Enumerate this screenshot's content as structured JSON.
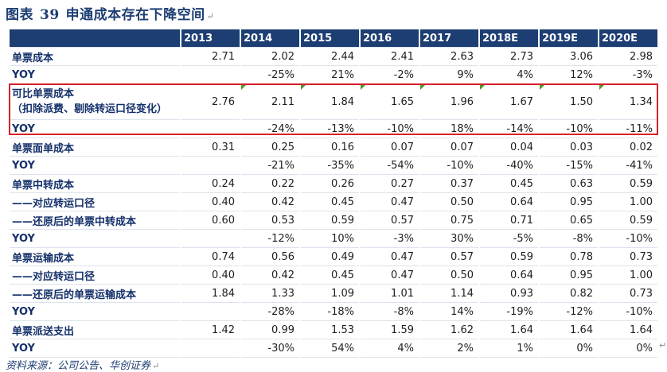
{
  "figure": {
    "label": "图表",
    "number": "39",
    "title": "申通成本存在下降空间",
    "para_mark": "↵"
  },
  "table": {
    "columns": [
      "",
      "2013",
      "2014",
      "2015",
      "2016",
      "2017",
      "2018E",
      "2019E",
      "2020E"
    ],
    "rows": [
      {
        "label": "单票成本",
        "values": [
          "2.71",
          "2.02",
          "2.44",
          "2.41",
          "2.63",
          "2.73",
          "3.06",
          "2.98"
        ]
      },
      {
        "label": "YOY",
        "values": [
          "",
          "-25%",
          "21%",
          "-2%",
          "9%",
          "4%",
          "12%",
          "-3%"
        ]
      },
      {
        "label": "可比单票成本",
        "label_line2": "（扣除派费、剔除转运口径变化）",
        "values": [
          "2.76",
          "2.11",
          "1.84",
          "1.65",
          "1.96",
          "1.67",
          "1.50",
          "1.34"
        ]
      },
      {
        "label": "YOY",
        "values": [
          "",
          "-24%",
          "-13%",
          "-10%",
          "18%",
          "-14%",
          "-10%",
          "-11%"
        ]
      },
      {
        "label": "单票面单成本",
        "values": [
          "0.31",
          "0.25",
          "0.16",
          "0.07",
          "0.07",
          "0.04",
          "0.03",
          "0.02"
        ]
      },
      {
        "label": "YOY",
        "values": [
          "",
          "-21%",
          "-35%",
          "-54%",
          "-10%",
          "-40%",
          "-15%",
          "-41%"
        ]
      },
      {
        "label": "单票中转成本",
        "values": [
          "0.24",
          "0.22",
          "0.26",
          "0.27",
          "0.37",
          "0.45",
          "0.63",
          "0.59"
        ]
      },
      {
        "label": "——对应转运口径",
        "values": [
          "0.40",
          "0.42",
          "0.45",
          "0.47",
          "0.50",
          "0.64",
          "0.95",
          "1.00"
        ]
      },
      {
        "label": "——还原后的单票中转成本",
        "values": [
          "0.60",
          "0.53",
          "0.59",
          "0.57",
          "0.75",
          "0.71",
          "0.65",
          "0.59"
        ]
      },
      {
        "label": "YOY",
        "values": [
          "",
          "-12%",
          "10%",
          "-3%",
          "30%",
          "-5%",
          "-8%",
          "-10%"
        ]
      },
      {
        "label": "单票运输成本",
        "values": [
          "0.74",
          "0.56",
          "0.49",
          "0.47",
          "0.57",
          "0.59",
          "0.78",
          "0.73"
        ]
      },
      {
        "label": "——对应转运口径",
        "values": [
          "0.40",
          "0.42",
          "0.45",
          "0.47",
          "0.50",
          "0.64",
          "0.95",
          "1.00"
        ]
      },
      {
        "label": "——还原后的单票运输成本",
        "values": [
          "1.84",
          "1.33",
          "1.09",
          "1.01",
          "1.14",
          "0.93",
          "0.82",
          "0.73"
        ]
      },
      {
        "label": "YOY",
        "values": [
          "",
          "-28%",
          "-18%",
          "-8%",
          "14%",
          "-19%",
          "-12%",
          "-10%"
        ]
      },
      {
        "label": "单票派送支出",
        "values": [
          "1.42",
          "0.99",
          "1.53",
          "1.59",
          "1.62",
          "1.64",
          "1.64",
          "1.64"
        ]
      },
      {
        "label": "YOY",
        "values": [
          "",
          "-30%",
          "54%",
          "4%",
          "2%",
          "1%",
          "0%",
          "0%"
        ]
      }
    ]
  },
  "source": "资料来源：公司公告、华创证券",
  "colors": {
    "header_bg": "#1d3e73",
    "label_text": "#14306a",
    "highlight_border": "#d8202a",
    "marker_green": "#4c9a2a"
  }
}
